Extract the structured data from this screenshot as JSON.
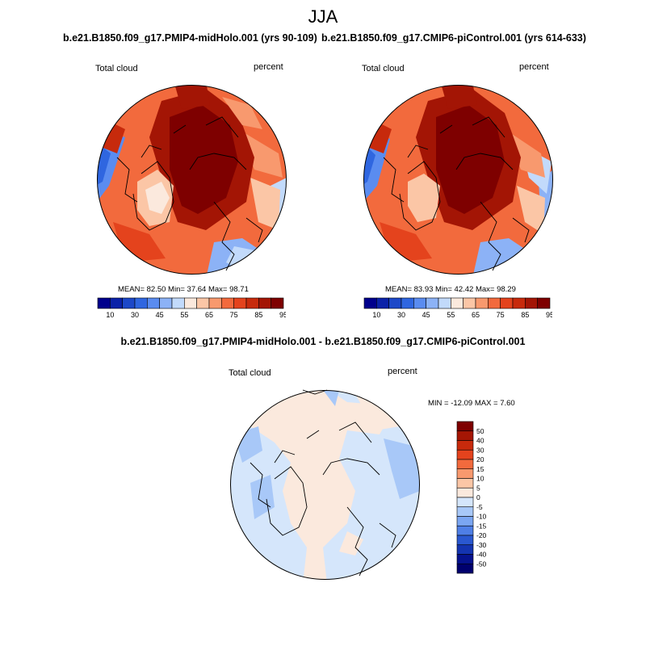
{
  "title": "JJA",
  "panels": [
    {
      "title": "b.e21.B1850.f09_g17.PMIP4-midHolo.001 (yrs 90-109)",
      "left_label": "Total cloud",
      "right_label": "percent",
      "stats": "MEAN=  82.50   Min=  37.64   Max=  98.71"
    },
    {
      "title": "b.e21.B1850.f09_g17.CMIP6-piControl.001 (yrs 614-633)",
      "left_label": "Total cloud",
      "right_label": "percent",
      "stats": "MEAN=  83.93   Min=  42.42   Max=  98.29"
    }
  ],
  "difference": {
    "title": "b.e21.B1850.f09_g17.PMIP4-midHolo.001 - b.e21.B1850.f09_g17.CMIP6-piControl.001",
    "left_label": "Total cloud",
    "right_label": "percent",
    "stats": "MIN = -12.09 MAX =   7.60"
  },
  "colorbar_abs": {
    "tick_labels": [
      "10",
      "30",
      "45",
      "55",
      "65",
      "75",
      "85",
      "95"
    ],
    "colors": [
      "#00008c",
      "#0b22a8",
      "#1c48c8",
      "#2f66e0",
      "#5a8cf0",
      "#8cb2f6",
      "#c2dafb",
      "#fbe9dd",
      "#fbc6a6",
      "#f8996e",
      "#f26a3d",
      "#e4431d",
      "#c72a0c",
      "#a31505",
      "#7e0000"
    ]
  },
  "colorbar_diff": {
    "tick_labels": [
      "50",
      "40",
      "30",
      "20",
      "15",
      "10",
      "5",
      "0",
      "-5",
      "-10",
      "-15",
      "-20",
      "-30",
      "-40",
      "-50"
    ],
    "colors": [
      "#7e0000",
      "#a51604",
      "#c72a0c",
      "#e4431d",
      "#f26a3d",
      "#f8996e",
      "#fbc6a6",
      "#fbe9dd",
      "#d5e6fb",
      "#a8c8f8",
      "#7ba6f2",
      "#4f7fe6",
      "#2a58d0",
      "#1434b0",
      "#06128e",
      "#00006e"
    ]
  }
}
